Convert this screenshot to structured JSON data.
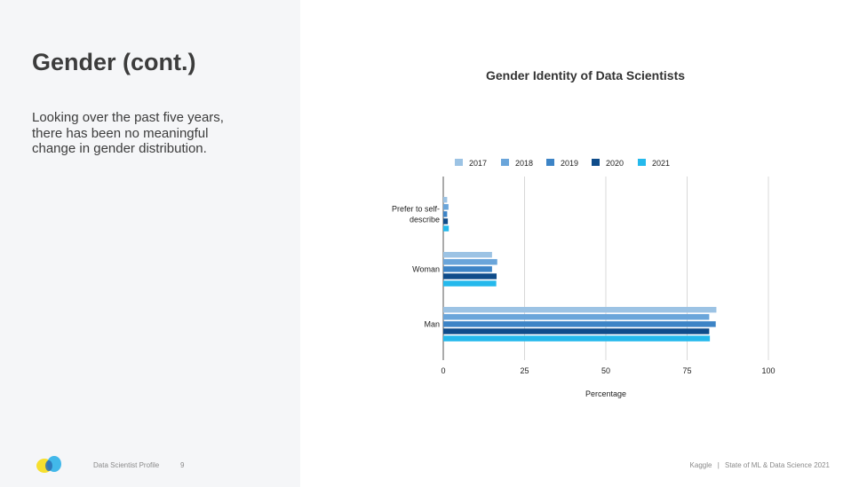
{
  "slide": {
    "heading": "Gender (cont.)",
    "body": "Looking over the past five years, there has been no meaningful change in gender distribution."
  },
  "footer": {
    "section": "Data Scientist Profile",
    "page_number": "9",
    "brand": "Kaggle",
    "separator": "|",
    "report": "State of ML & Data Science 2021"
  },
  "chart_data": {
    "type": "bar",
    "orientation": "horizontal",
    "title": "Gender Identity of Data Scientists",
    "xlabel": "Percentage",
    "ylabel": "",
    "xlim": [
      0,
      100
    ],
    "xticks": [
      0,
      25,
      50,
      75,
      100
    ],
    "grid": true,
    "legend_position": "top",
    "categories": [
      [
        "Prefer to self-",
        "describe"
      ],
      [
        "Woman"
      ],
      [
        "Man"
      ]
    ],
    "series": [
      {
        "name": "2017",
        "color": "#9cc3e4",
        "values": [
          1.2,
          15.0,
          84.0
        ]
      },
      {
        "name": "2018",
        "color": "#6aa5da",
        "values": [
          1.6,
          16.6,
          81.8
        ]
      },
      {
        "name": "2019",
        "color": "#3d84c6",
        "values": [
          1.2,
          15.0,
          83.8
        ]
      },
      {
        "name": "2020",
        "color": "#0f4c8a",
        "values": [
          1.4,
          16.4,
          81.8
        ]
      },
      {
        "name": "2021",
        "color": "#25b9ec",
        "values": [
          1.7,
          16.3,
          82.0
        ]
      }
    ]
  }
}
